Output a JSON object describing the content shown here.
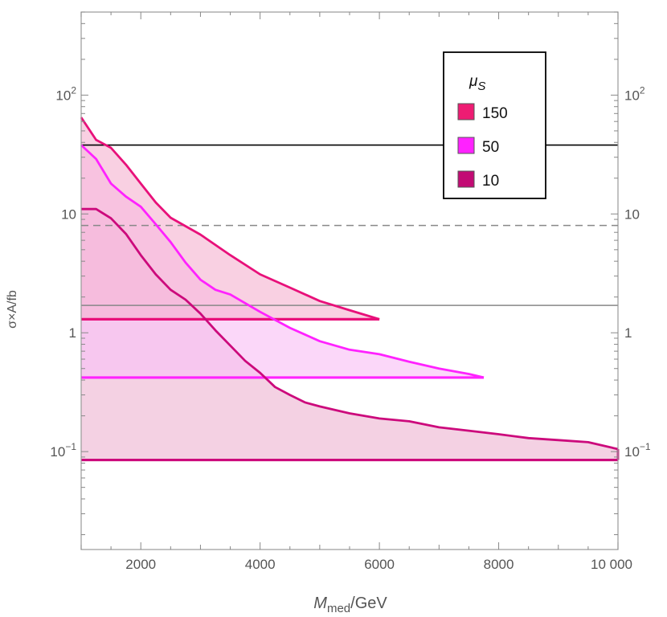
{
  "chart_data": {
    "type": "area",
    "xlabel": "M",
    "xlabel_sub": "med",
    "xlabel_unit": "/GeV",
    "ylabel": "σ×A/fb",
    "xlim": [
      1000,
      10000
    ],
    "ylim": [
      0.015,
      500
    ],
    "yscale": "log",
    "x_ticks": [
      {
        "value": 2000,
        "label": "2000"
      },
      {
        "value": 4000,
        "label": "4000"
      },
      {
        "value": 6000,
        "label": "6000"
      },
      {
        "value": 8000,
        "label": "8000"
      },
      {
        "value": 10000,
        "label": "10 000"
      }
    ],
    "y_ticks": [
      {
        "value": 0.1,
        "base": "10",
        "exp": "−1"
      },
      {
        "value": 1,
        "base": "1",
        "exp": ""
      },
      {
        "value": 10,
        "base": "10",
        "exp": ""
      },
      {
        "value": 100,
        "base": "10",
        "exp": "2"
      }
    ],
    "legend": {
      "title": "μ",
      "title_sub": "S",
      "placement": "top-right",
      "entries": [
        "150",
        "50",
        "10"
      ]
    },
    "reference_lines": [
      {
        "y": 38,
        "style": "solid",
        "color": "#000000"
      },
      {
        "y": 8,
        "style": "dashed",
        "color": "#888888"
      },
      {
        "y": 1.7,
        "style": "solid",
        "color": "#888888"
      }
    ],
    "series": [
      {
        "name": "150",
        "color": "#e8107a",
        "fill": "#f6b7d3",
        "floor": 1.3,
        "x": [
          1000,
          1250,
          1500,
          1750,
          2000,
          2250,
          2500,
          3000,
          3500,
          4000,
          4500,
          5000,
          5500,
          6000
        ],
        "y": [
          65,
          42,
          36,
          26,
          18,
          12.5,
          9.3,
          6.7,
          4.5,
          3.1,
          2.4,
          1.85,
          1.55,
          1.3
        ]
      },
      {
        "name": "50",
        "color": "#ff22ff",
        "fill": "#f9c2f6",
        "floor": 0.42,
        "x": [
          1000,
          1250,
          1500,
          1750,
          2000,
          2250,
          2500,
          2750,
          3000,
          3250,
          3500,
          4000,
          4500,
          5000,
          5500,
          6000,
          6500,
          7000,
          7500,
          7750
        ],
        "y": [
          38,
          29,
          18,
          14,
          11.5,
          8.2,
          5.8,
          3.9,
          2.8,
          2.3,
          2.1,
          1.5,
          1.1,
          0.85,
          0.72,
          0.66,
          0.57,
          0.5,
          0.45,
          0.42
        ]
      },
      {
        "name": "10",
        "color": "#cc0a7c",
        "fill": "#eeb8d4",
        "floor": 0.085,
        "x": [
          1000,
          1250,
          1500,
          1750,
          2000,
          2250,
          2500,
          2750,
          3000,
          3250,
          3500,
          3750,
          4000,
          4250,
          4500,
          4750,
          5000,
          5500,
          6000,
          6500,
          7000,
          7500,
          8000,
          8500,
          9000,
          9500,
          10000
        ],
        "y": [
          11,
          11,
          9.2,
          6.8,
          4.5,
          3.1,
          2.3,
          1.9,
          1.45,
          1.05,
          0.78,
          0.58,
          0.46,
          0.35,
          0.3,
          0.26,
          0.24,
          0.21,
          0.19,
          0.18,
          0.16,
          0.15,
          0.14,
          0.13,
          0.125,
          0.12,
          0.105
        ]
      }
    ]
  }
}
